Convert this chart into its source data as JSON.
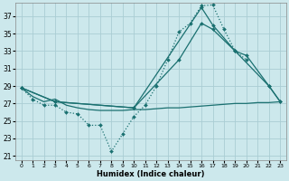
{
  "xlabel": "Humidex (Indice chaleur)",
  "bg_color": "#cce8ec",
  "grid_color": "#aacdd4",
  "line_color": "#1a7070",
  "xlim": [
    -0.5,
    23.5
  ],
  "ylim": [
    20.5,
    38.5
  ],
  "yticks": [
    21,
    23,
    25,
    27,
    29,
    31,
    33,
    35,
    37
  ],
  "xticks": [
    0,
    1,
    2,
    3,
    4,
    5,
    6,
    7,
    8,
    9,
    10,
    11,
    12,
    13,
    14,
    15,
    16,
    17,
    18,
    19,
    20,
    21,
    22,
    23
  ],
  "line1_x": [
    0,
    1,
    2,
    3,
    4,
    5,
    6,
    7,
    8,
    9,
    10,
    11,
    12,
    13,
    14,
    15,
    16,
    17,
    18,
    19,
    20
  ],
  "line1_y": [
    28.8,
    27.5,
    26.8,
    26.8,
    26.0,
    25.8,
    24.5,
    24.5,
    21.5,
    23.5,
    25.5,
    26.8,
    29.0,
    32.0,
    35.2,
    36.2,
    38.2,
    38.3,
    35.5,
    33.0,
    32.0
  ],
  "line2_x": [
    0,
    1,
    2,
    3,
    4,
    5,
    6,
    7,
    8,
    9,
    10,
    11,
    12,
    13,
    14,
    15,
    16,
    17,
    18,
    19,
    20,
    21,
    22,
    23
  ],
  "line2_y": [
    28.8,
    27.8,
    27.2,
    27.5,
    26.8,
    26.5,
    26.3,
    26.2,
    26.2,
    26.2,
    26.3,
    26.3,
    26.4,
    26.5,
    26.5,
    26.6,
    26.7,
    26.8,
    26.9,
    27.0,
    27.0,
    27.1,
    27.1,
    27.2
  ],
  "line3_x": [
    0,
    3,
    10,
    16,
    17,
    19,
    22,
    23
  ],
  "line3_y": [
    28.8,
    27.2,
    26.5,
    38.0,
    36.0,
    33.0,
    29.0,
    27.2
  ],
  "line4_x": [
    0,
    3,
    10,
    14,
    16,
    17,
    19,
    20,
    22,
    23
  ],
  "line4_y": [
    28.8,
    27.2,
    26.5,
    32.0,
    36.2,
    35.5,
    33.0,
    32.5,
    29.0,
    27.2
  ]
}
